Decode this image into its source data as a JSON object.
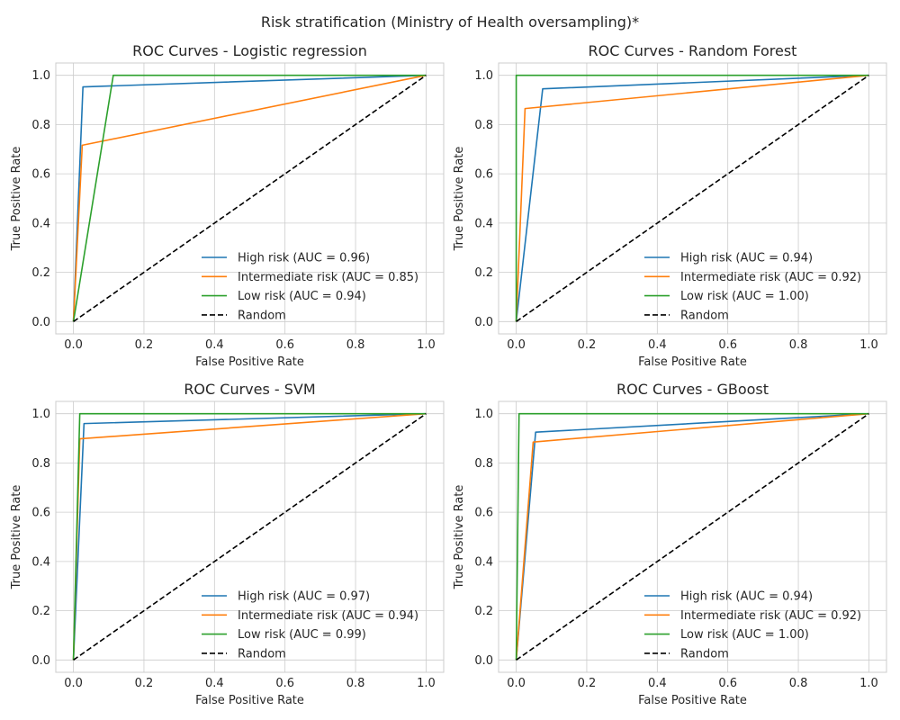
{
  "suptitle": "Risk stratification (Ministry of Health oversampling)*",
  "colors": {
    "high": "#1f77b4",
    "intermediate": "#ff7f0e",
    "low": "#2ca02c",
    "random": "#000000",
    "grid": "#cccccc",
    "spine": "#cccccc",
    "text": "#262626"
  },
  "chart_data": [
    {
      "type": "line",
      "title": "ROC Curves - Logistic regression",
      "xlabel": "False Positive Rate",
      "ylabel": "True Positive Rate",
      "xlim": [
        -0.05,
        1.05
      ],
      "ylim": [
        -0.05,
        1.05
      ],
      "xticks": [
        "0.0",
        "0.2",
        "0.4",
        "0.6",
        "0.8",
        "1.0"
      ],
      "yticks": [
        "0.0",
        "0.2",
        "0.4",
        "0.6",
        "0.8",
        "1.0"
      ],
      "grid": true,
      "legend_position": "lower-right",
      "series": [
        {
          "name": "High risk (AUC = 0.96)",
          "color_key": "high",
          "dash": "solid",
          "x": [
            0,
            0.027,
            1
          ],
          "y": [
            0,
            0.953,
            1
          ]
        },
        {
          "name": "Intermediate risk (AUC = 0.85)",
          "color_key": "intermediate",
          "dash": "solid",
          "x": [
            0,
            0.025,
            1
          ],
          "y": [
            0,
            0.716,
            1
          ]
        },
        {
          "name": "Low risk (AUC = 0.94)",
          "color_key": "low",
          "dash": "solid",
          "x": [
            0,
            0.113,
            1
          ],
          "y": [
            0,
            1,
            1
          ]
        },
        {
          "name": "Random",
          "color_key": "random",
          "dash": "dashed",
          "x": [
            0,
            1
          ],
          "y": [
            0,
            1
          ]
        }
      ]
    },
    {
      "type": "line",
      "title": "ROC Curves - Random Forest",
      "xlabel": "False Positive Rate",
      "ylabel": "True Positive Rate",
      "xlim": [
        -0.05,
        1.05
      ],
      "ylim": [
        -0.05,
        1.05
      ],
      "xticks": [
        "0.0",
        "0.2",
        "0.4",
        "0.6",
        "0.8",
        "1.0"
      ],
      "yticks": [
        "0.0",
        "0.2",
        "0.4",
        "0.6",
        "0.8",
        "1.0"
      ],
      "grid": true,
      "legend_position": "lower-right",
      "series": [
        {
          "name": "High risk (AUC = 0.94)",
          "color_key": "high",
          "dash": "solid",
          "x": [
            0,
            0.075,
            1
          ],
          "y": [
            0,
            0.945,
            1
          ]
        },
        {
          "name": "Intermediate risk (AUC = 0.92)",
          "color_key": "intermediate",
          "dash": "solid",
          "x": [
            0,
            0.025,
            1
          ],
          "y": [
            0,
            0.865,
            1
          ]
        },
        {
          "name": "Low risk (AUC = 1.00)",
          "color_key": "low",
          "dash": "solid",
          "x": [
            0,
            0,
            1
          ],
          "y": [
            0,
            1,
            1
          ]
        },
        {
          "name": "Random",
          "color_key": "random",
          "dash": "dashed",
          "x": [
            0,
            1
          ],
          "y": [
            0,
            1
          ]
        }
      ]
    },
    {
      "type": "line",
      "title": "ROC Curves - SVM",
      "xlabel": "False Positive Rate",
      "ylabel": "True Positive Rate",
      "xlim": [
        -0.05,
        1.05
      ],
      "ylim": [
        -0.05,
        1.05
      ],
      "xticks": [
        "0.0",
        "0.2",
        "0.4",
        "0.6",
        "0.8",
        "1.0"
      ],
      "yticks": [
        "0.0",
        "0.2",
        "0.4",
        "0.6",
        "0.8",
        "1.0"
      ],
      "grid": true,
      "legend_position": "lower-right",
      "series": [
        {
          "name": "High risk (AUC = 0.97)",
          "color_key": "high",
          "dash": "solid",
          "x": [
            0,
            0.03,
            1
          ],
          "y": [
            0,
            0.96,
            1
          ]
        },
        {
          "name": "Intermediate risk (AUC = 0.94)",
          "color_key": "intermediate",
          "dash": "solid",
          "x": [
            0,
            0.018,
            1
          ],
          "y": [
            0,
            0.898,
            1
          ]
        },
        {
          "name": "Low risk (AUC = 0.99)",
          "color_key": "low",
          "dash": "solid",
          "x": [
            0,
            0.018,
            1
          ],
          "y": [
            0,
            1,
            1
          ]
        },
        {
          "name": "Random",
          "color_key": "random",
          "dash": "dashed",
          "x": [
            0,
            1
          ],
          "y": [
            0,
            1
          ]
        }
      ]
    },
    {
      "type": "line",
      "title": "ROC Curves - GBoost",
      "xlabel": "False Positive Rate",
      "ylabel": "True Positive Rate",
      "xlim": [
        -0.05,
        1.05
      ],
      "ylim": [
        -0.05,
        1.05
      ],
      "xticks": [
        "0.0",
        "0.2",
        "0.4",
        "0.6",
        "0.8",
        "1.0"
      ],
      "yticks": [
        "0.0",
        "0.2",
        "0.4",
        "0.6",
        "0.8",
        "1.0"
      ],
      "grid": true,
      "legend_position": "lower-right",
      "series": [
        {
          "name": "High risk (AUC = 0.94)",
          "color_key": "high",
          "dash": "solid",
          "x": [
            0,
            0.055,
            1
          ],
          "y": [
            0,
            0.925,
            1
          ]
        },
        {
          "name": "Intermediate risk (AUC = 0.92)",
          "color_key": "intermediate",
          "dash": "solid",
          "x": [
            0,
            0.048,
            1
          ],
          "y": [
            0,
            0.885,
            1
          ]
        },
        {
          "name": "Low risk (AUC = 1.00)",
          "color_key": "low",
          "dash": "solid",
          "x": [
            0,
            0.008,
            1
          ],
          "y": [
            0,
            1,
            1
          ]
        },
        {
          "name": "Random",
          "color_key": "random",
          "dash": "dashed",
          "x": [
            0,
            1
          ],
          "y": [
            0,
            1
          ]
        }
      ]
    }
  ]
}
